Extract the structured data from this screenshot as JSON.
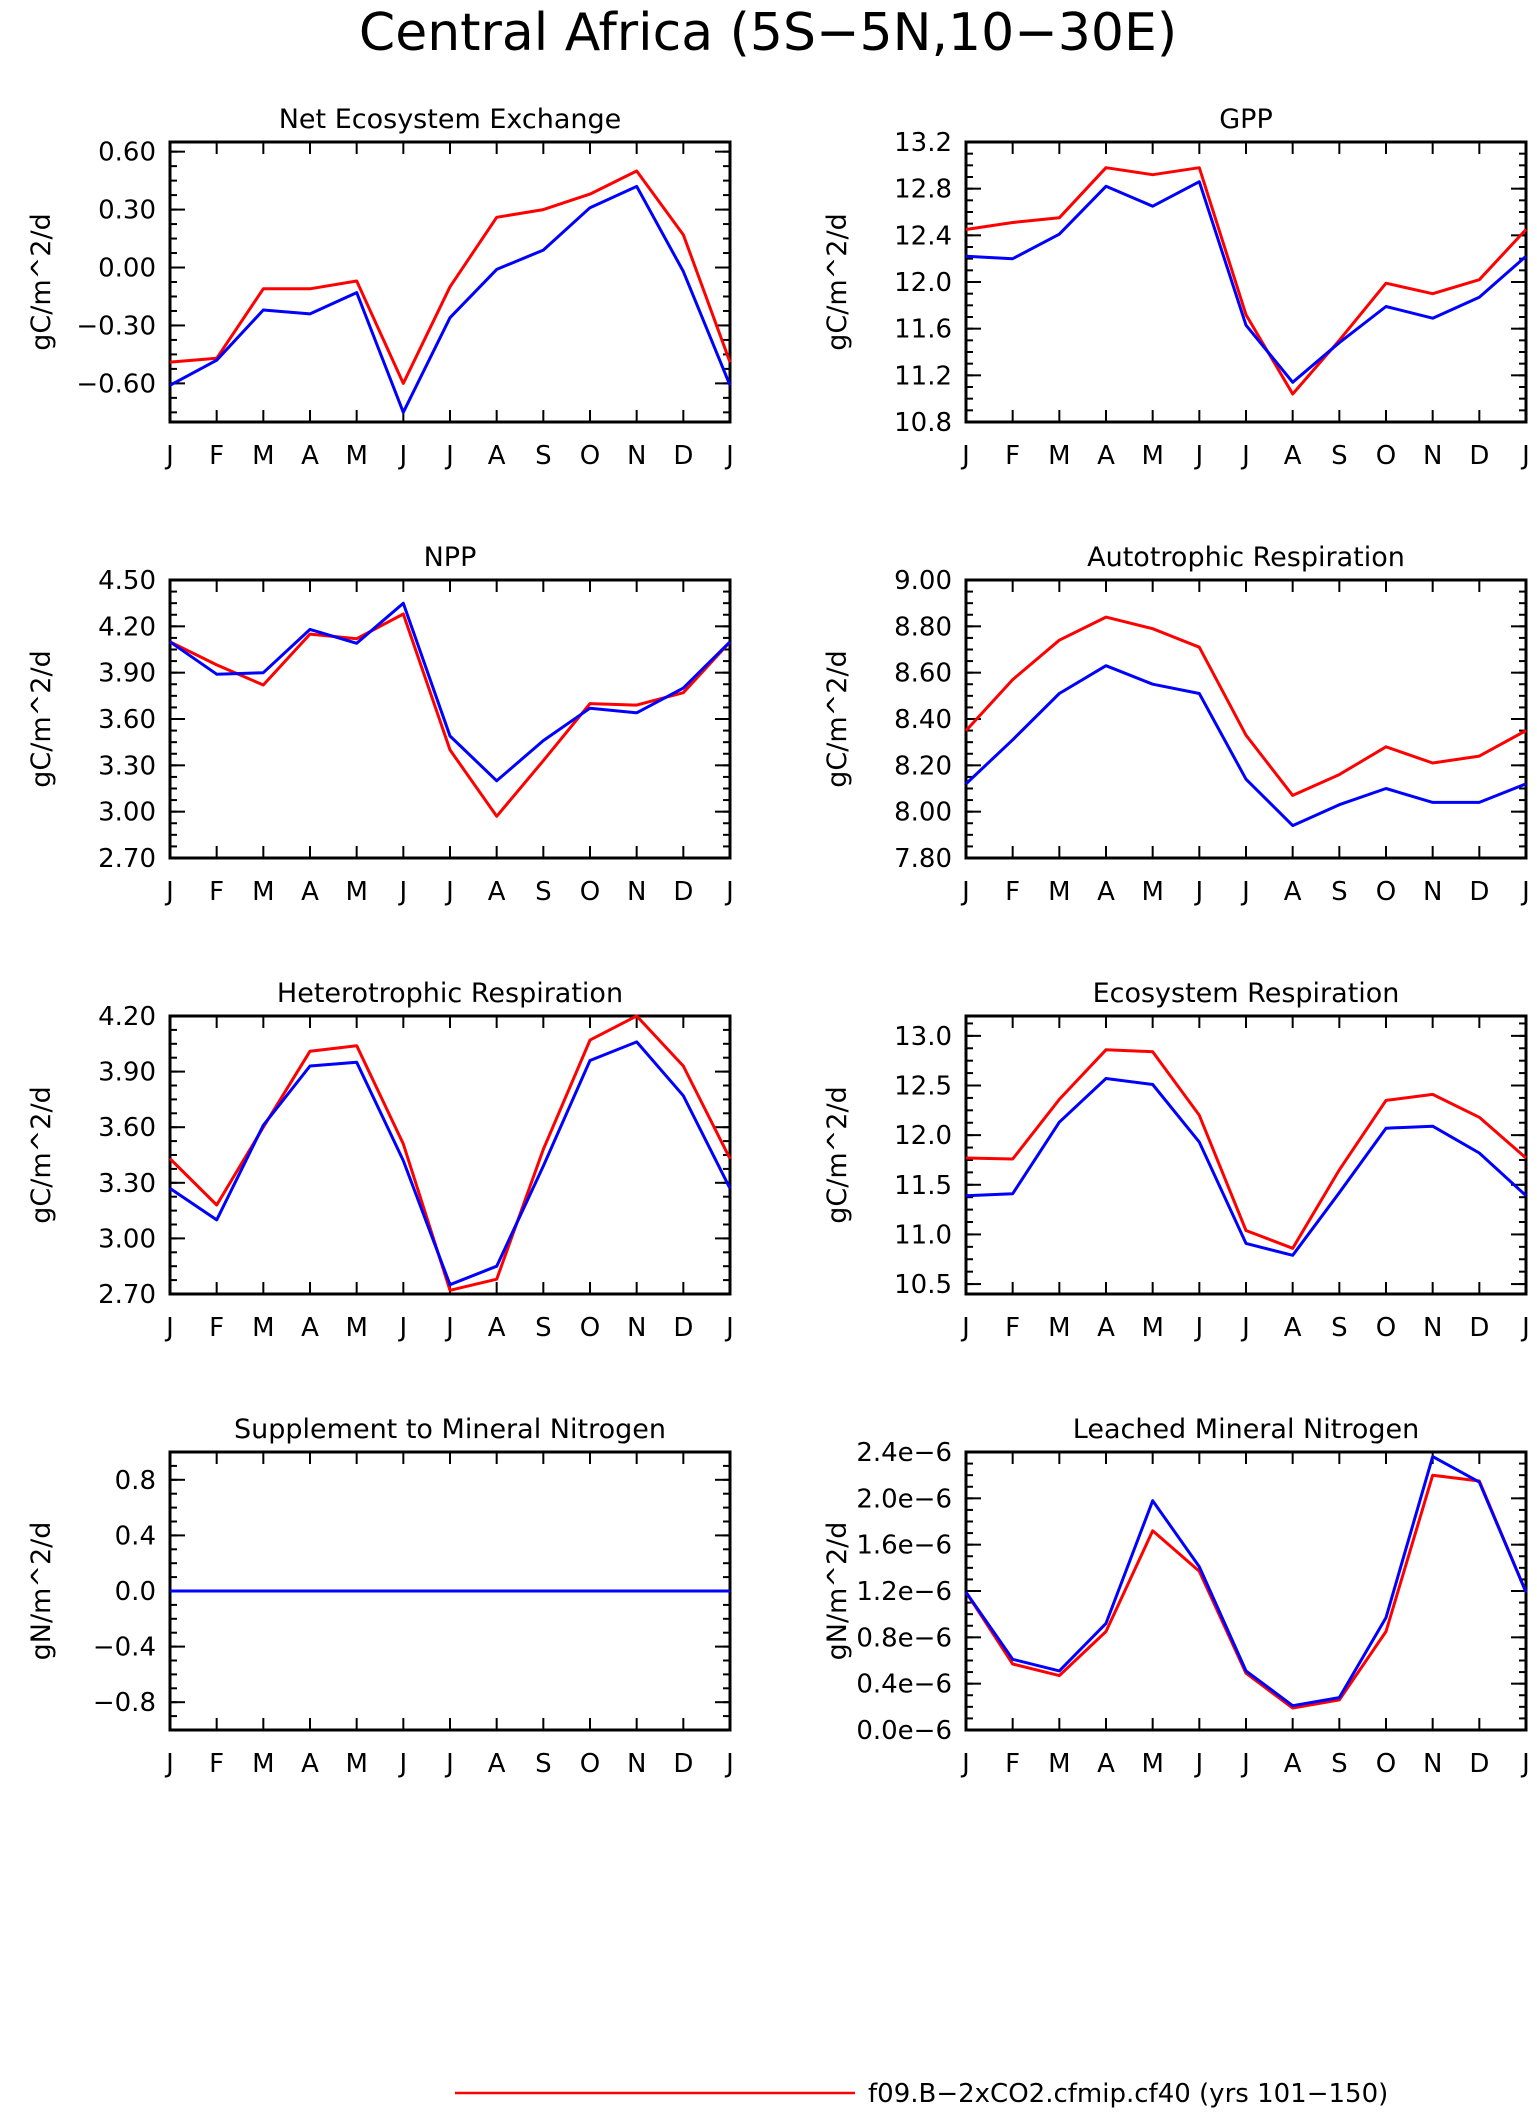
{
  "page_title": "Central Africa (5S−5N,10−30E)",
  "month_labels": [
    "J",
    "F",
    "M",
    "A",
    "M",
    "J",
    "J",
    "A",
    "S",
    "O",
    "N",
    "D",
    "J"
  ],
  "colors": {
    "series_red": "#ff0000",
    "series_blue": "#0000ff",
    "axis": "#000000"
  },
  "legend": [
    {
      "label": "f09.B−2xCO2.cfmip.cf40 (yrs 101−150)",
      "color": "#ff0000"
    }
  ],
  "chart_data": [
    {
      "type": "line",
      "title": "Net Ecosystem Exchange",
      "ylabel": "gC/m^2/d",
      "x": [
        "J",
        "F",
        "M",
        "A",
        "M",
        "J",
        "J",
        "A",
        "S",
        "O",
        "N",
        "D",
        "J"
      ],
      "ylim": [
        -0.8,
        0.65
      ],
      "yticks": [
        -0.6,
        -0.3,
        0.0,
        0.3,
        0.6
      ],
      "ytick_labels": [
        "−0.60",
        "−0.30",
        "0.00",
        "0.30",
        "0.60"
      ],
      "series": [
        {
          "color": "#ff0000",
          "values": [
            -0.49,
            -0.47,
            -0.11,
            -0.11,
            -0.07,
            -0.6,
            -0.1,
            0.26,
            0.3,
            0.38,
            0.5,
            0.17,
            -0.49
          ]
        },
        {
          "color": "#0000ff",
          "values": [
            -0.61,
            -0.48,
            -0.22,
            -0.24,
            -0.13,
            -0.75,
            -0.26,
            -0.01,
            0.09,
            0.31,
            0.42,
            -0.02,
            -0.61
          ]
        }
      ]
    },
    {
      "type": "line",
      "title": "GPP",
      "ylabel": "gC/m^2/d",
      "x": [
        "J",
        "F",
        "M",
        "A",
        "M",
        "J",
        "J",
        "A",
        "S",
        "O",
        "N",
        "D",
        "J"
      ],
      "ylim": [
        10.8,
        13.2
      ],
      "yticks": [
        10.8,
        11.2,
        11.6,
        12.0,
        12.4,
        12.8,
        13.2
      ],
      "ytick_labels": [
        "10.8",
        "11.2",
        "11.6",
        "12.0",
        "12.4",
        "12.8",
        "13.2"
      ],
      "series": [
        {
          "color": "#ff0000",
          "values": [
            12.45,
            12.51,
            12.55,
            12.98,
            12.92,
            12.98,
            11.72,
            11.04,
            11.5,
            11.99,
            11.9,
            12.02,
            12.45
          ]
        },
        {
          "color": "#0000ff",
          "values": [
            12.22,
            12.2,
            12.41,
            12.82,
            12.65,
            12.86,
            11.63,
            11.14,
            11.48,
            11.79,
            11.69,
            11.87,
            12.22
          ]
        }
      ]
    },
    {
      "type": "line",
      "title": "NPP",
      "ylabel": "gC/m^2/d",
      "x": [
        "J",
        "F",
        "M",
        "A",
        "M",
        "J",
        "J",
        "A",
        "S",
        "O",
        "N",
        "D",
        "J"
      ],
      "ylim": [
        2.7,
        4.5
      ],
      "yticks": [
        2.7,
        3.0,
        3.3,
        3.6,
        3.9,
        4.2,
        4.5
      ],
      "ytick_labels": [
        "2.70",
        "3.00",
        "3.30",
        "3.60",
        "3.90",
        "4.20",
        "4.50"
      ],
      "series": [
        {
          "color": "#ff0000",
          "values": [
            4.1,
            3.95,
            3.82,
            4.15,
            4.12,
            4.28,
            3.4,
            2.97,
            3.33,
            3.7,
            3.69,
            3.77,
            4.1
          ]
        },
        {
          "color": "#0000ff",
          "values": [
            4.1,
            3.89,
            3.9,
            4.18,
            4.09,
            4.35,
            3.49,
            3.2,
            3.46,
            3.67,
            3.64,
            3.8,
            4.1
          ]
        }
      ]
    },
    {
      "type": "line",
      "title": "Autotrophic Respiration",
      "ylabel": "gC/m^2/d",
      "x": [
        "J",
        "F",
        "M",
        "A",
        "M",
        "J",
        "J",
        "A",
        "S",
        "O",
        "N",
        "D",
        "J"
      ],
      "ylim": [
        7.8,
        9.0
      ],
      "yticks": [
        7.8,
        8.0,
        8.2,
        8.4,
        8.6,
        8.8,
        9.0
      ],
      "ytick_labels": [
        "7.80",
        "8.00",
        "8.20",
        "8.40",
        "8.60",
        "8.80",
        "9.00"
      ],
      "series": [
        {
          "color": "#ff0000",
          "values": [
            8.35,
            8.57,
            8.74,
            8.84,
            8.79,
            8.71,
            8.33,
            8.07,
            8.16,
            8.28,
            8.21,
            8.24,
            8.35
          ]
        },
        {
          "color": "#0000ff",
          "values": [
            8.12,
            8.31,
            8.51,
            8.63,
            8.55,
            8.51,
            8.14,
            7.94,
            8.03,
            8.1,
            8.04,
            8.04,
            8.12
          ]
        }
      ]
    },
    {
      "type": "line",
      "title": "Heterotrophic Respiration",
      "ylabel": "gC/m^2/d",
      "x": [
        "J",
        "F",
        "M",
        "A",
        "M",
        "J",
        "J",
        "A",
        "S",
        "O",
        "N",
        "D",
        "J"
      ],
      "ylim": [
        2.7,
        4.2
      ],
      "yticks": [
        2.7,
        3.0,
        3.3,
        3.6,
        3.9,
        4.2
      ],
      "ytick_labels": [
        "2.70",
        "3.00",
        "3.30",
        "3.60",
        "3.90",
        "4.20"
      ],
      "series": [
        {
          "color": "#ff0000",
          "values": [
            3.43,
            3.18,
            3.6,
            4.01,
            4.04,
            3.51,
            2.72,
            2.78,
            3.48,
            4.07,
            4.2,
            3.93,
            3.43
          ]
        },
        {
          "color": "#0000ff",
          "values": [
            3.27,
            3.1,
            3.61,
            3.93,
            3.95,
            3.42,
            2.75,
            2.85,
            3.39,
            3.96,
            4.06,
            3.77,
            3.27
          ]
        }
      ]
    },
    {
      "type": "line",
      "title": "Ecosystem Respiration",
      "ylabel": "gC/m^2/d",
      "x": [
        "J",
        "F",
        "M",
        "A",
        "M",
        "J",
        "J",
        "A",
        "S",
        "O",
        "N",
        "D",
        "J"
      ],
      "ylim": [
        10.4,
        13.2
      ],
      "yticks": [
        10.5,
        11.0,
        11.5,
        12.0,
        12.5,
        13.0
      ],
      "ytick_labels": [
        "10.5",
        "11.0",
        "11.5",
        "12.0",
        "12.5",
        "13.0"
      ],
      "series": [
        {
          "color": "#ff0000",
          "values": [
            11.77,
            11.76,
            12.36,
            12.86,
            12.84,
            12.2,
            11.04,
            10.86,
            11.65,
            12.35,
            12.41,
            12.18,
            11.77
          ]
        },
        {
          "color": "#0000ff",
          "values": [
            11.39,
            11.41,
            12.13,
            12.57,
            12.51,
            11.93,
            10.91,
            10.79,
            11.42,
            12.07,
            12.09,
            11.82,
            11.39
          ]
        }
      ]
    },
    {
      "type": "line",
      "title": "Supplement to Mineral Nitrogen",
      "ylabel": "gN/m^2/d",
      "x": [
        "J",
        "F",
        "M",
        "A",
        "M",
        "J",
        "J",
        "A",
        "S",
        "O",
        "N",
        "D",
        "J"
      ],
      "ylim": [
        -1.0,
        1.0
      ],
      "yticks": [
        -0.8,
        -0.4,
        0.0,
        0.4,
        0.8
      ],
      "ytick_labels": [
        "−0.8",
        "−0.4",
        "0.0",
        "0.4",
        "0.8"
      ],
      "series": [
        {
          "color": "#ff0000",
          "values": [
            0,
            0,
            0,
            0,
            0,
            0,
            0,
            0,
            0,
            0,
            0,
            0,
            0
          ]
        },
        {
          "color": "#0000ff",
          "values": [
            0,
            0,
            0,
            0,
            0,
            0,
            0,
            0,
            0,
            0,
            0,
            0,
            0
          ]
        }
      ]
    },
    {
      "type": "line",
      "title": "Leached Mineral Nitrogen",
      "ylabel": "gN/m^2/d",
      "x": [
        "J",
        "F",
        "M",
        "A",
        "M",
        "J",
        "J",
        "A",
        "S",
        "O",
        "N",
        "D",
        "J"
      ],
      "ylim": [
        0.0,
        2.4e-06
      ],
      "yticks": [
        0.0,
        4e-07,
        8e-07,
        1.2e-06,
        1.6e-06,
        2e-06,
        2.4e-06
      ],
      "ytick_labels": [
        "0.0e−6",
        "0.4e−6",
        "0.8e−6",
        "1.2e−6",
        "1.6e−6",
        "2.0e−6",
        "2.4e−6"
      ],
      "series": [
        {
          "color": "#ff0000",
          "values": [
            1.19e-06,
            5.7e-07,
            4.7e-07,
            8.5e-07,
            1.72e-06,
            1.37e-06,
            4.9e-07,
            1.9e-07,
            2.6e-07,
            8.5e-07,
            2.2e-06,
            2.15e-06,
            1.19e-06
          ]
        },
        {
          "color": "#0000ff",
          "values": [
            1.19e-06,
            6.1e-07,
            5.1e-07,
            9.2e-07,
            1.98e-06,
            1.41e-06,
            5.1e-07,
            2.1e-07,
            2.8e-07,
            9.7e-07,
            2.36e-06,
            2.14e-06,
            1.19e-06
          ]
        }
      ]
    }
  ]
}
